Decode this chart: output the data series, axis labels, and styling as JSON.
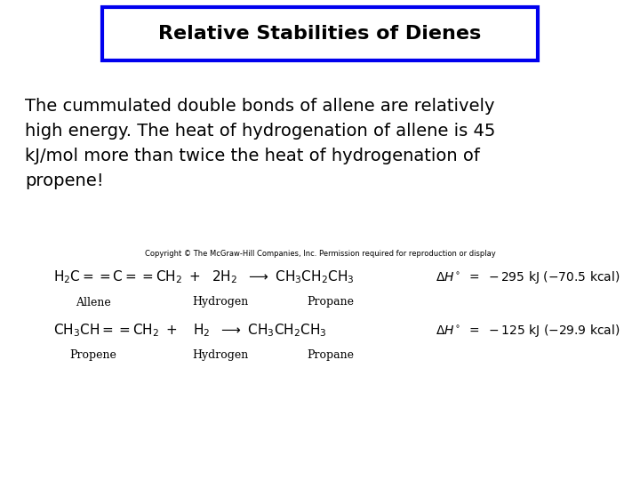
{
  "title": "Relative Stabilities of Dienes",
  "background_color": "#ffffff",
  "title_box_edge_color": "#0000ee",
  "body_text_line1": "The cummulated double bonds of allene are relatively",
  "body_text_line2": "high energy. The heat of hydrogenation of allene is 45",
  "body_text_line3": "kJ/mol more than twice the heat of hydrogenation of",
  "body_text_line4": "propene!",
  "copyright_text": "Copyright © The McGraw-Hill Companies, Inc. Permission required for reproduction or display",
  "reaction1_labels": [
    "Allene",
    "Hydrogen",
    "Propane"
  ],
  "reaction2_labels": [
    "Propene",
    "Hydrogen",
    "Propane"
  ],
  "title_fontsize": 16,
  "body_fontsize": 14,
  "rxn_fontsize": 11,
  "label_fontsize": 9,
  "copyright_fontsize": 6
}
